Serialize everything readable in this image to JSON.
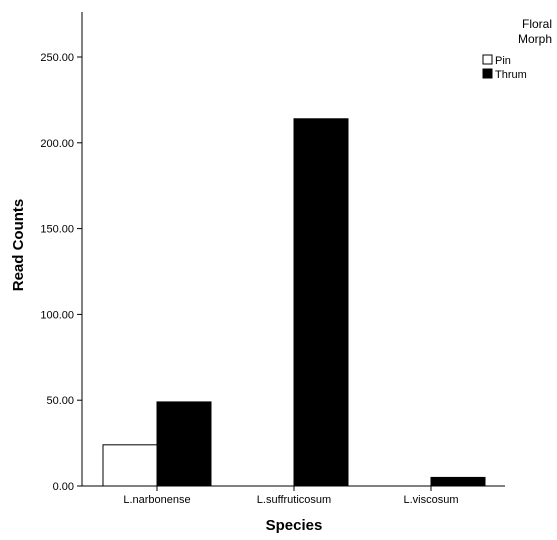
{
  "chart_data": {
    "type": "bar",
    "xlabel": "Species",
    "ylabel": "Read Counts",
    "categories": [
      "L.narbonense",
      "L.suffruticosum",
      "L.viscosum"
    ],
    "series": [
      {
        "name": "Pin",
        "values": [
          24,
          0,
          0
        ],
        "color": "#ffffff"
      },
      {
        "name": "Thrum",
        "values": [
          49,
          214,
          5
        ],
        "color": "#000000"
      }
    ],
    "ylim": [
      0,
      275
    ],
    "yticks": [
      "0.00",
      "50.00",
      "100.00",
      "150.00",
      "200.00",
      "250.00"
    ],
    "legend": {
      "title_line1": "Floral",
      "title_line2": "Morph",
      "placement": "top-right"
    },
    "grid": false
  }
}
